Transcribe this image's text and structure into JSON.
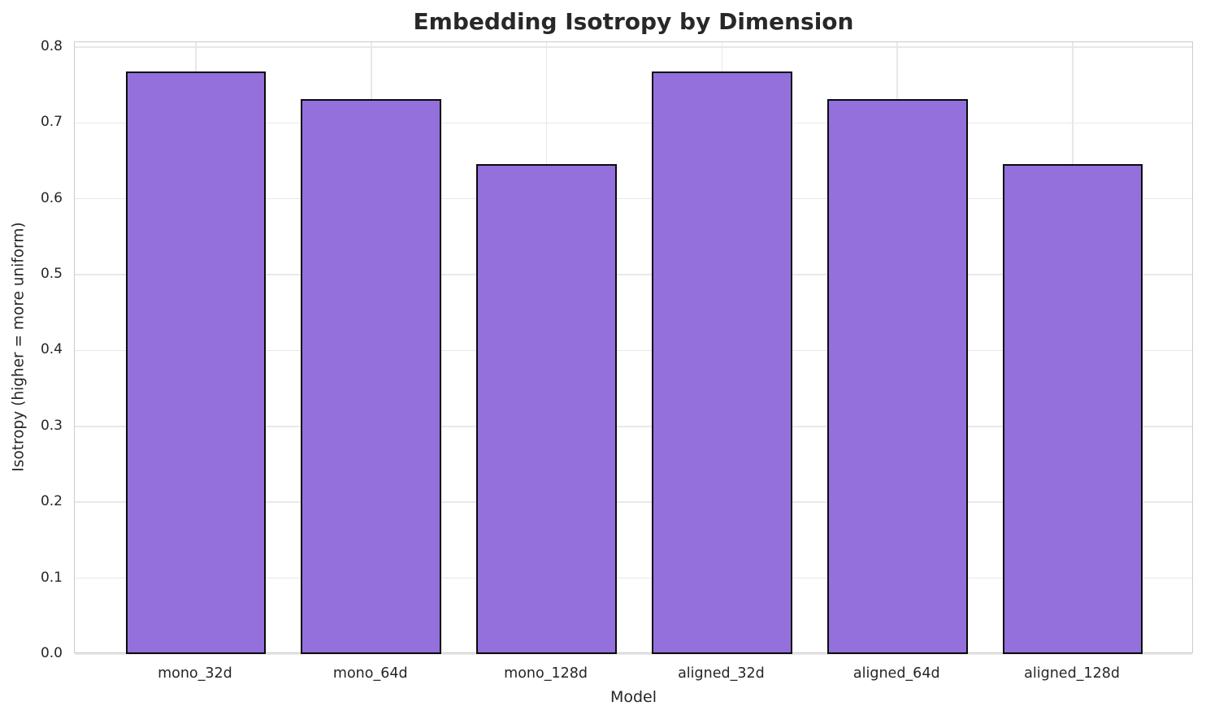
{
  "chart_data": {
    "type": "bar",
    "title": "Embedding Isotropy by Dimension",
    "xlabel": "Model",
    "ylabel": "Isotropy (higher = more uniform)",
    "categories": [
      "mono_32d",
      "mono_64d",
      "mono_128d",
      "aligned_32d",
      "aligned_64d",
      "aligned_128d"
    ],
    "values": [
      0.768,
      0.731,
      0.646,
      0.768,
      0.731,
      0.646
    ],
    "ylim": [
      0,
      0.8064
    ],
    "yticks": [
      "0.0",
      "0.1",
      "0.2",
      "0.3",
      "0.4",
      "0.5",
      "0.6",
      "0.7",
      "0.8"
    ],
    "grid": "on",
    "legend": "none",
    "colors": {
      "bar_fill": "#9370DB",
      "bar_edge": "#0a0a0a",
      "grid": "#e8e8e8",
      "spine": "#cccccc",
      "text": "#262626"
    }
  }
}
